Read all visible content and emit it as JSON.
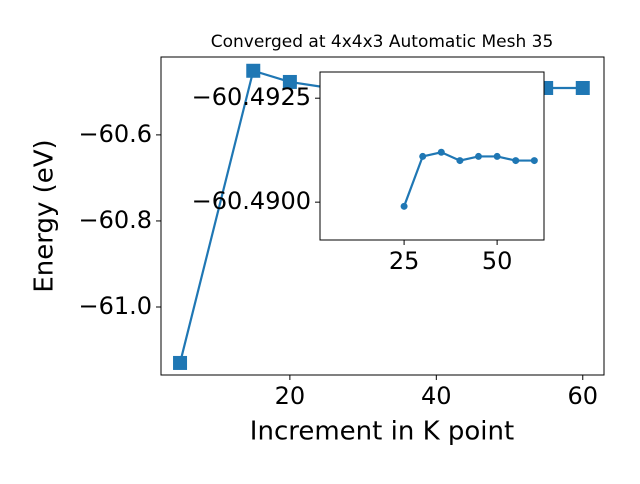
{
  "chart_data": [
    {
      "type": "line",
      "title": "Converged at 4x4x3 Automatic Mesh 35",
      "x_label": "Increment in K point",
      "y_label": "Energy (eV)",
      "x": [
        5,
        15,
        20,
        25,
        30,
        35,
        40,
        45,
        50,
        55,
        60
      ],
      "series": [
        {
          "color": "#1f77b4",
          "marker": "square",
          "values": [
            -61.13,
            -60.451,
            -60.477,
            -60.4899,
            -60.4911,
            -60.4912,
            -60.491,
            -60.4911,
            -60.4911,
            -60.491,
            -60.491
          ]
        }
      ],
      "xlim": [
        2.4,
        62.9
      ],
      "ylim": [
        -61.158,
        -60.419
      ],
      "xticks": [
        20,
        40,
        60
      ],
      "yticks": [
        {
          "value": -60.6,
          "label": "−60.6"
        },
        {
          "value": -60.8,
          "label": "−60.8"
        },
        {
          "value": -61.0,
          "label": "−61.0"
        }
      ]
    },
    {
      "type": "line",
      "x": [
        25,
        30,
        35,
        40,
        45,
        50,
        55,
        60
      ],
      "series": [
        {
          "color": "#1f77b4",
          "marker": "circle",
          "values": [
            -60.4899,
            -60.4911,
            -60.4912,
            -60.491,
            -60.4911,
            -60.4911,
            -60.491,
            -60.491
          ]
        }
      ],
      "xlim": [
        2.4,
        62.6
      ],
      "ylim": [
        -60.48909,
        -60.49313
      ],
      "xticks": [
        25,
        50
      ],
      "yticks": [
        {
          "value": -60.4925,
          "label": "−60.4925"
        },
        {
          "value": -60.49,
          "label": "−60.4900"
        }
      ]
    }
  ]
}
